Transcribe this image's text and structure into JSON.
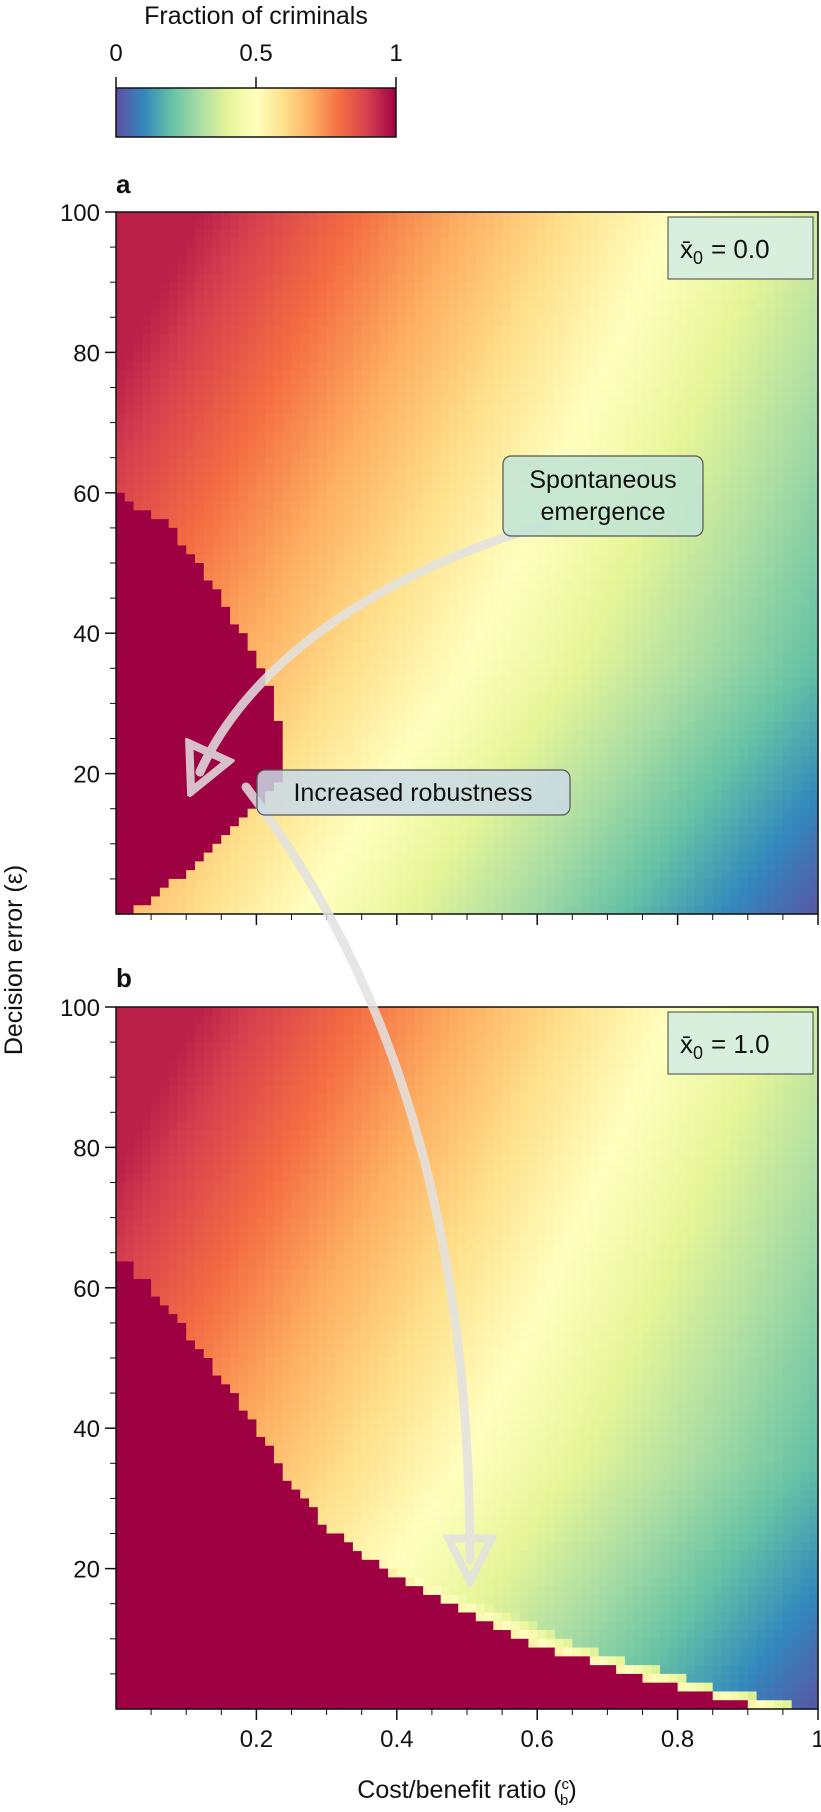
{
  "colorbar": {
    "label": "Fraction of criminals",
    "ticks": [
      "0",
      "0.5",
      "1"
    ],
    "range": [
      0,
      1
    ],
    "colormap": "Spectral_r"
  },
  "annotations": {
    "spontaneous_line1": "Spontaneous",
    "spontaneous_line2": "emergence",
    "robustness": "Increased robustness"
  },
  "axes": {
    "ylabel": "Decision error (ε)",
    "xlabel_prefix": "Cost/benefit ratio (",
    "xlabel_num": "c",
    "xlabel_den": "b",
    "xlabel_suffix": ")"
  },
  "chart_data": [
    {
      "type": "heatmap",
      "panel": "a",
      "inset_symbol": "x̄",
      "inset_sub": "0",
      "inset_value": "= 0.0",
      "x_range": [
        0,
        1
      ],
      "y_range": [
        0,
        100
      ],
      "x_ticks": [
        {
          "value": 0.2,
          "label": "0.2"
        },
        {
          "value": 0.4,
          "label": "0.4"
        },
        {
          "value": 0.6,
          "label": "0.6"
        },
        {
          "value": 0.8,
          "label": "0.8"
        },
        {
          "value": 1.0,
          "label": "1"
        }
      ],
      "y_ticks": [
        {
          "value": 20,
          "label": "20"
        },
        {
          "value": 40,
          "label": "40"
        },
        {
          "value": 60,
          "label": "60"
        },
        {
          "value": 80,
          "label": "80"
        },
        {
          "value": 100,
          "label": "100"
        }
      ],
      "criminal_region_boundary": [
        [
          0.02,
          0
        ],
        [
          0.05,
          2
        ],
        [
          0.1,
          6
        ],
        [
          0.15,
          10
        ],
        [
          0.18,
          13
        ],
        [
          0.2,
          15
        ],
        [
          0.23,
          18
        ],
        [
          0.24,
          25
        ],
        [
          0.21,
          35
        ],
        [
          0.15,
          45
        ],
        [
          0.08,
          55
        ],
        [
          0.0,
          60
        ]
      ],
      "notes": "fraction ~1 inside boundary, decreasing with cost/benefit ratio; ~0.5 near ratio 0.2–0.3 at high error"
    },
    {
      "type": "heatmap",
      "panel": "b",
      "inset_symbol": "x̄",
      "inset_sub": "0",
      "inset_value": "= 1.0",
      "x_range": [
        0,
        1
      ],
      "y_range": [
        0,
        100
      ],
      "x_ticks": [
        {
          "value": 0.2,
          "label": "0.2"
        },
        {
          "value": 0.4,
          "label": "0.4"
        },
        {
          "value": 0.6,
          "label": "0.6"
        },
        {
          "value": 0.8,
          "label": "0.8"
        },
        {
          "value": 1.0,
          "label": "1"
        }
      ],
      "y_ticks": [
        {
          "value": 20,
          "label": "20"
        },
        {
          "value": 40,
          "label": "40"
        },
        {
          "value": 60,
          "label": "60"
        },
        {
          "value": 80,
          "label": "80"
        },
        {
          "value": 100,
          "label": "100"
        }
      ],
      "criminal_region_boundary": [
        [
          0.93,
          0
        ],
        [
          0.8,
          3
        ],
        [
          0.6,
          9
        ],
        [
          0.45,
          16
        ],
        [
          0.35,
          22
        ],
        [
          0.3,
          26
        ],
        [
          0.25,
          32
        ],
        [
          0.2,
          40
        ],
        [
          0.13,
          50
        ],
        [
          0.05,
          60
        ],
        [
          0.0,
          65
        ]
      ],
      "notes": "fraction ~1 below boundary (much larger region than panel a)"
    }
  ]
}
